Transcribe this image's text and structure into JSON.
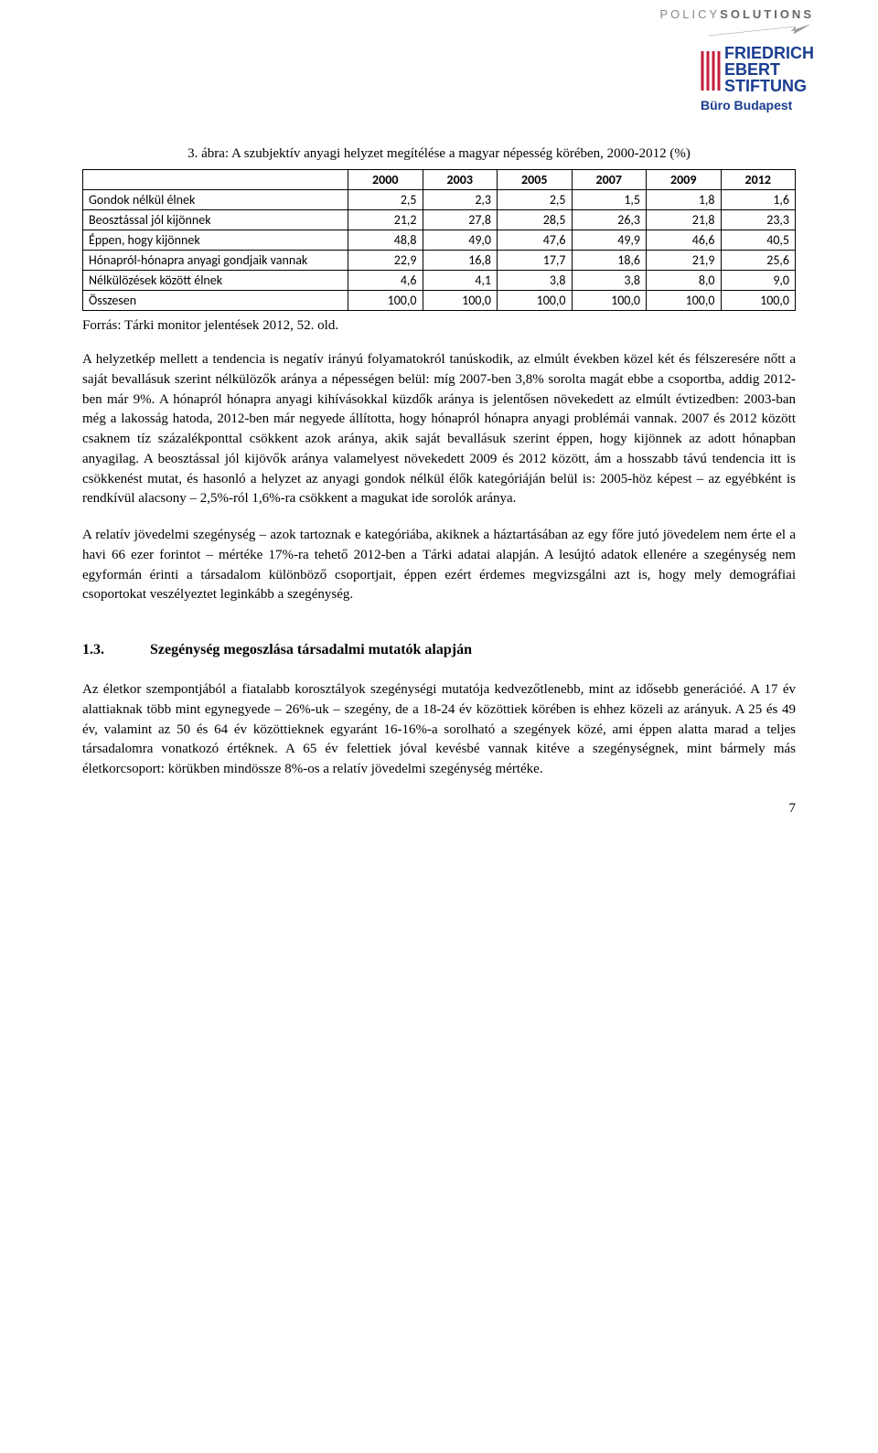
{
  "header": {
    "policy_logo_normal": "POLICY",
    "policy_logo_bold": "SOLUTIONS",
    "fes_line1": "FRIEDRICH",
    "fes_line2": "EBERT",
    "fes_line3": "STIFTUNG",
    "fes_sub": "Büro Budapest"
  },
  "figure": {
    "caption_prefix": "3.",
    "caption_text": "ábra: A szubjektív anyagi helyzet megítélése a magyar népesség körében, 2000-2012 (%)",
    "source": "Forrás: Tárki monitor jelentések 2012, 52. old."
  },
  "table": {
    "columns": [
      "",
      "2000",
      "2003",
      "2005",
      "2007",
      "2009",
      "2012"
    ],
    "rows": [
      [
        "Gondok nélkül élnek",
        "2,5",
        "2,3",
        "2,5",
        "1,5",
        "1,8",
        "1,6"
      ],
      [
        "Beosztással jól kijönnek",
        "21,2",
        "27,8",
        "28,5",
        "26,3",
        "21,8",
        "23,3"
      ],
      [
        "Éppen, hogy kijönnek",
        "48,8",
        "49,0",
        "47,6",
        "49,9",
        "46,6",
        "40,5"
      ],
      [
        "Hónapról-hónapra anyagi gondjaik vannak",
        "22,9",
        "16,8",
        "17,7",
        "18,6",
        "21,9",
        "25,6"
      ],
      [
        "Nélkülözések között élnek",
        "4,6",
        "4,1",
        "3,8",
        "3,8",
        "8,0",
        "9,0"
      ],
      [
        "Összesen",
        "100,0",
        "100,0",
        "100,0",
        "100,0",
        "100,0",
        "100,0"
      ]
    ]
  },
  "paragraphs": {
    "p1": "A helyzetkép mellett a tendencia is negatív irányú folyamatokról tanúskodik, az elmúlt években közel két és félszeresére nőtt a saját bevallásuk szerint nélkülözők aránya a népességen belül: míg 2007-ben 3,8% sorolta magát ebbe a csoportba, addig 2012-ben már 9%. A hónapról hónapra anyagi kihívásokkal küzdők aránya is jelentősen növekedett az elmúlt évtizedben: 2003-ban még a lakosság hatoda, 2012-ben már negyede állította, hogy hónapról hónapra anyagi problémái vannak. 2007 és 2012 között csaknem tíz százalékponttal csökkent azok aránya, akik saját bevallásuk szerint éppen, hogy kijönnek az adott hónapban anyagilag. A beosztással jól kijövők aránya valamelyest növekedett 2009 és 2012 között, ám a hosszabb távú tendencia itt is csökkenést mutat, és hasonló a helyzet az anyagi gondok nélkül élők kategóriáján belül is: 2005-höz képest – az egyébként is rendkívül alacsony – 2,5%-ról 1,6%-ra csökkent a magukat ide sorolók aránya.",
    "p2": "A relatív jövedelmi szegénység – azok tartoznak e kategóriába, akiknek a háztartásában az egy főre jutó jövedelem nem érte el a havi 66 ezer forintot – mértéke 17%-ra tehető 2012-ben a Tárki adatai alapján. A lesújtó adatok ellenére a szegénység nem egyformán érinti a társadalom különböző csoportjait, éppen ezért érdemes megvizsgálni azt is, hogy mely demográfiai csoportokat veszélyeztet leginkább a szegénység.",
    "p3": "Az életkor szempontjából a fiatalabb korosztályok szegénységi mutatója kedvezőtlenebb, mint az idősebb generációé. A 17 év alattiaknak több mint egynegyede – 26%-uk – szegény, de a 18-24 év közöttiek körében is ehhez közeli az arányuk. A 25 és 49 év, valamint az 50 és 64 év közöttieknek egyaránt 16-16%-a sorolható a szegények közé, ami éppen alatta marad a teljes társadalomra vonatkozó értéknek. A 65 év felettiek jóval kevésbé vannak kitéve a szegénységnek, mint bármely más életkorcsoport: körükben mindössze 8%-os a relatív jövedelmi szegénység mértéke."
  },
  "section": {
    "number": "1.3.",
    "title": "Szegénység megoszlása társadalmi mutatók alapján"
  },
  "page_number": "7"
}
